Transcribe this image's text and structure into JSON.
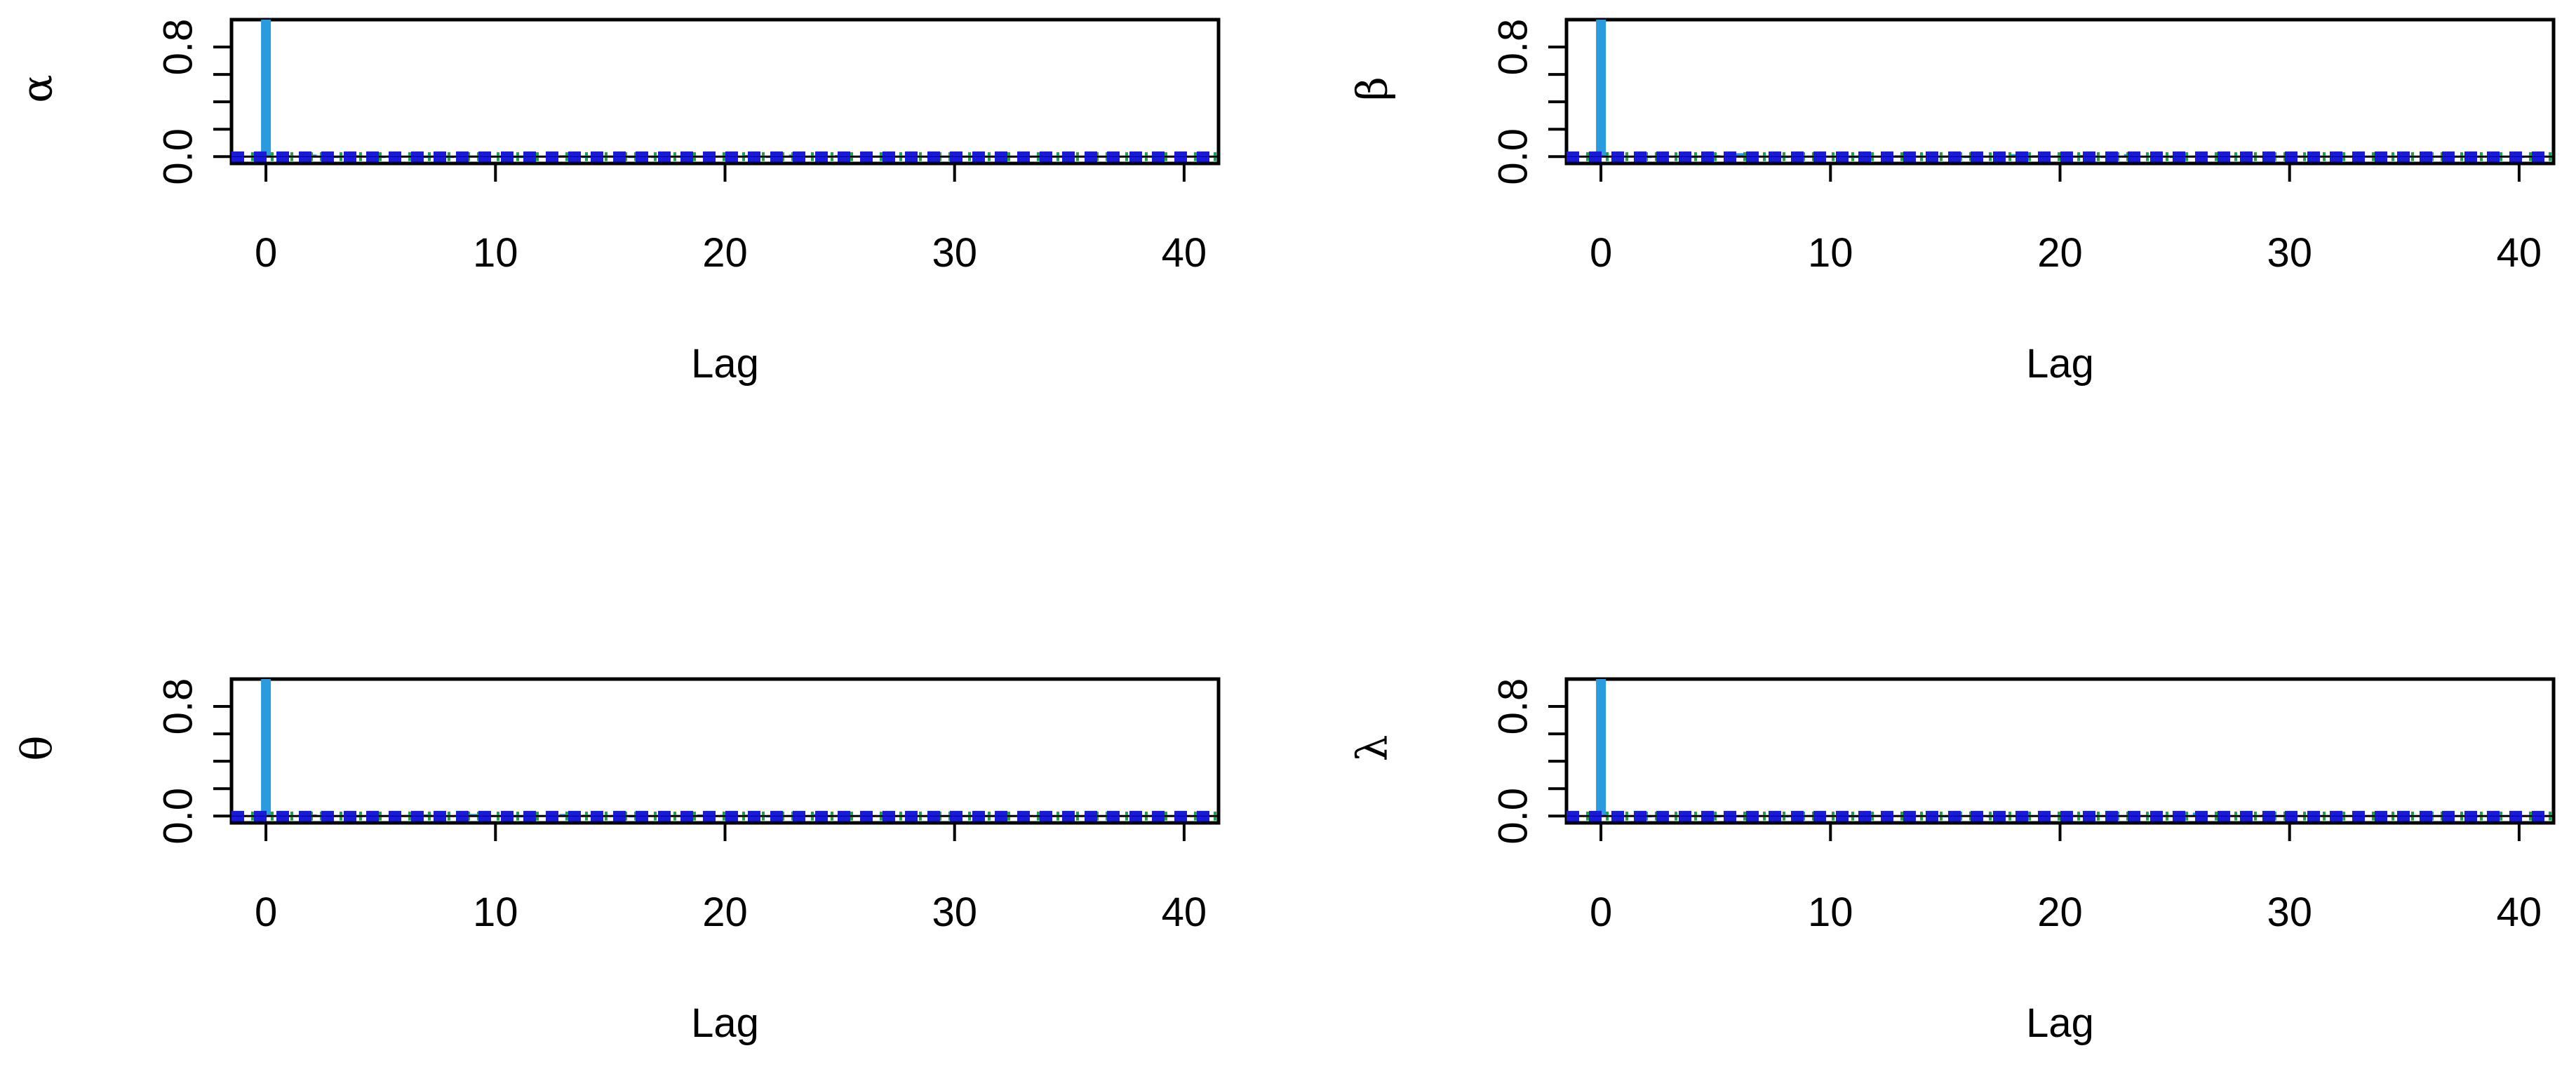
{
  "chart_data": [
    {
      "type": "bar",
      "ylabel": "α",
      "xlabel": "Lag",
      "xlim": [
        -1.5,
        41.5
      ],
      "ylim": [
        -0.05,
        1.0
      ],
      "x_ticks": [
        0,
        10,
        20,
        30,
        40
      ],
      "y_ticks": [
        0.0,
        0.8
      ],
      "y_minor_ticks": [
        0.2,
        0.4,
        0.6
      ],
      "confidence_band": [
        -0.02,
        0.02
      ],
      "lags": [
        0,
        1,
        2,
        3,
        4,
        5,
        6,
        7,
        8,
        9,
        10,
        11,
        12,
        13,
        14,
        15,
        16,
        17,
        18,
        19,
        20,
        21,
        22,
        23,
        24,
        25,
        26,
        27,
        28,
        29,
        30,
        31,
        32,
        33,
        34,
        35,
        36,
        37,
        38,
        39,
        40
      ],
      "values": [
        1.0,
        0.01,
        0.015,
        -0.005,
        0.01,
        -0.008,
        0.005,
        0.0,
        -0.01,
        0.008,
        0.005,
        -0.006,
        0.004,
        0.01,
        -0.005,
        0.008,
        0.0,
        -0.007,
        0.006,
        0.004,
        0.006,
        0.012,
        -0.005,
        0.015,
        0.008,
        0.012,
        0.005,
        -0.006,
        0.004,
        0.0,
        0.012,
        -0.004,
        0.006,
        0.0,
        -0.005,
        0.006,
        0.004,
        -0.006,
        0.0,
        0.005,
        0.004
      ],
      "colors": {
        "bars": "#2b9be0",
        "zero_line": "#000000",
        "band": "#1a1ad9",
        "band_dots": "#1aa34a"
      }
    },
    {
      "type": "bar",
      "ylabel": "β",
      "xlabel": "Lag",
      "xlim": [
        -1.5,
        41.5
      ],
      "ylim": [
        -0.05,
        1.0
      ],
      "x_ticks": [
        0,
        10,
        20,
        30,
        40
      ],
      "y_ticks": [
        0.0,
        0.8
      ],
      "y_minor_ticks": [
        0.2,
        0.4,
        0.6
      ],
      "confidence_band": [
        -0.02,
        0.02
      ],
      "lags": [
        0,
        1,
        2,
        3,
        4,
        5,
        6,
        7,
        8,
        9,
        10,
        11,
        12,
        13,
        14,
        15,
        16,
        17,
        18,
        19,
        20,
        21,
        22,
        23,
        24,
        25,
        26,
        27,
        28,
        29,
        30,
        31,
        32,
        33,
        34,
        35,
        36,
        37,
        38,
        39,
        40
      ],
      "values": [
        1.0,
        0.005,
        -0.006,
        0.004,
        -0.005,
        0.01,
        0.025,
        0.006,
        -0.006,
        0.004,
        0.006,
        -0.005,
        0.004,
        0.01,
        0.005,
        0.008,
        -0.006,
        0.004,
        0.018,
        0.01,
        0.004,
        0.012,
        -0.005,
        0.018,
        0.006,
        -0.006,
        0.008,
        0.004,
        0.006,
        0.0,
        0.008,
        -0.004,
        0.006,
        0.0,
        0.004,
        0.012,
        0.006,
        -0.006,
        0.004,
        -0.005,
        0.0
      ],
      "colors": {
        "bars": "#2b9be0",
        "zero_line": "#000000",
        "band": "#1a1ad9",
        "band_dots": "#1aa34a"
      }
    },
    {
      "type": "bar",
      "ylabel": "θ",
      "xlabel": "Lag",
      "xlim": [
        -1.5,
        41.5
      ],
      "ylim": [
        -0.05,
        1.0
      ],
      "x_ticks": [
        0,
        10,
        20,
        30,
        40
      ],
      "y_ticks": [
        0.0,
        0.8
      ],
      "y_minor_ticks": [
        0.2,
        0.4,
        0.6
      ],
      "confidence_band": [
        -0.02,
        0.02
      ],
      "lags": [
        0,
        1,
        2,
        3,
        4,
        5,
        6,
        7,
        8,
        9,
        10,
        11,
        12,
        13,
        14,
        15,
        16,
        17,
        18,
        19,
        20,
        21,
        22,
        23,
        24,
        25,
        26,
        27,
        28,
        29,
        30,
        31,
        32,
        33,
        34,
        35,
        36,
        37,
        38,
        39,
        40
      ],
      "values": [
        1.0,
        0.005,
        0.012,
        0.006,
        -0.005,
        0.004,
        0.008,
        0.012,
        0.006,
        0.015,
        0.006,
        -0.005,
        0.004,
        0.015,
        0.01,
        0.004,
        -0.006,
        0.004,
        0.008,
        0.012,
        0.008,
        0.01,
        -0.004,
        0.006,
        0.015,
        0.008,
        0.006,
        0.012,
        0.004,
        -0.006,
        0.005,
        0.004,
        0.008,
        0.006,
        -0.004,
        0.005,
        0.012,
        0.004,
        0.008,
        0.006,
        0.004
      ],
      "colors": {
        "bars": "#2b9be0",
        "zero_line": "#000000",
        "band": "#1a1ad9",
        "band_dots": "#1aa34a"
      }
    },
    {
      "type": "bar",
      "ylabel": "λ",
      "xlabel": "Lag",
      "xlim": [
        -1.5,
        41.5
      ],
      "ylim": [
        -0.05,
        1.0
      ],
      "x_ticks": [
        0,
        10,
        20,
        30,
        40
      ],
      "y_ticks": [
        0.0,
        0.8
      ],
      "y_minor_ticks": [
        0.2,
        0.4,
        0.6
      ],
      "confidence_band": [
        -0.02,
        0.02
      ],
      "lags": [
        0,
        1,
        2,
        3,
        4,
        5,
        6,
        7,
        8,
        9,
        10,
        11,
        12,
        13,
        14,
        15,
        16,
        17,
        18,
        19,
        20,
        21,
        22,
        23,
        24,
        25,
        26,
        27,
        28,
        29,
        30,
        31,
        32,
        33,
        34,
        35,
        36,
        37,
        38,
        39,
        40
      ],
      "values": [
        1.0,
        0.004,
        -0.005,
        0.008,
        0.004,
        -0.006,
        0.0,
        0.005,
        -0.005,
        0.004,
        0.006,
        -0.004,
        0.008,
        0.005,
        0.004,
        -0.006,
        0.004,
        0.0,
        0.006,
        0.005,
        0.004,
        -0.005,
        0.006,
        0.004,
        0.0,
        0.005,
        0.025,
        0.004,
        -0.005,
        0.012,
        0.01,
        0.015,
        0.004,
        -0.005,
        0.006,
        0.004,
        0.0,
        0.008,
        -0.005,
        0.005,
        0.004
      ],
      "colors": {
        "bars": "#2b9be0",
        "zero_line": "#000000",
        "band": "#1a1ad9",
        "band_dots": "#1aa34a"
      }
    }
  ]
}
